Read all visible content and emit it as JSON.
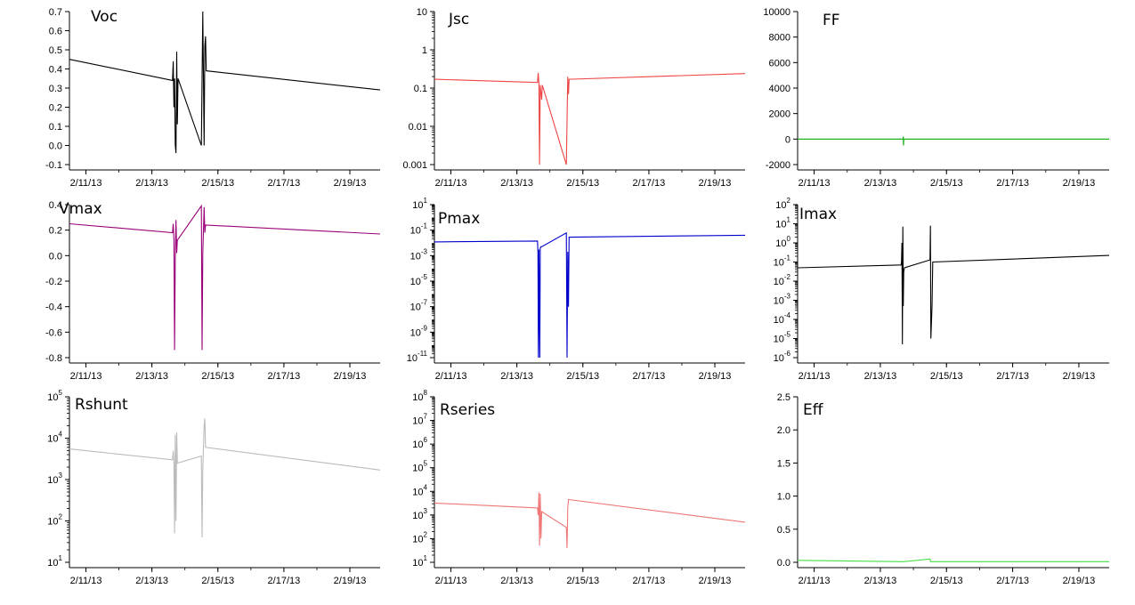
{
  "x_ticks": [
    "2/11/13",
    "2/13/13",
    "2/15/13",
    "2/17/13",
    "2/19/13"
  ],
  "chart_data": [
    {
      "type": "line",
      "title": "Voc",
      "color": "#000000",
      "scale": "linear",
      "ylim": [
        -0.1,
        0.7
      ],
      "y_ticks": [
        {
          "value": 0.7,
          "label": "0.7"
        },
        {
          "value": 0.6,
          "label": "0.6"
        },
        {
          "value": 0.5,
          "label": "0.5"
        },
        {
          "value": 0.4,
          "label": "0.4"
        },
        {
          "value": 0.3,
          "label": "0.3"
        },
        {
          "value": 0.2,
          "label": "0.2"
        },
        {
          "value": 0.1,
          "label": "0.1"
        },
        {
          "value": 0.0,
          "label": "0.0"
        },
        {
          "value": -0.1,
          "label": "-0.1"
        }
      ],
      "x": [
        "2013-02-10T12:00",
        "2013-02-13T15:00",
        "2013-02-13T15:30",
        "2013-02-13T16:00",
        "2013-02-13T16:30",
        "2013-02-13T17:00",
        "2013-02-13T17:30",
        "2013-02-13T18:00",
        "2013-02-13T18:30",
        "2013-02-13T19:00",
        "2013-02-14T12:00",
        "2013-02-14T13:00",
        "2013-02-14T14:00",
        "2013-02-14T14:30",
        "2013-02-14T15:00",
        "2013-02-14T15:30",
        "2013-02-19T22:00"
      ],
      "y": [
        0.45,
        0.34,
        0.44,
        0.2,
        0.35,
        0.0,
        -0.04,
        0.49,
        0.11,
        0.35,
        0.0,
        0.7,
        0.0,
        0.52,
        0.57,
        0.39,
        0.29
      ]
    },
    {
      "type": "line",
      "title": "Jsc",
      "color": "#ee4444",
      "scale": "log",
      "ylim": [
        0.001,
        10
      ],
      "y_ticks": [
        {
          "value": 10,
          "label": "10"
        },
        {
          "value": 1,
          "label": "1"
        },
        {
          "value": 0.1,
          "label": "0.1"
        },
        {
          "value": 0.01,
          "label": "0.01"
        },
        {
          "value": 0.001,
          "label": "0.001"
        }
      ],
      "x": [
        "2013-02-10T12:00",
        "2013-02-13T15:00",
        "2013-02-13T15:30",
        "2013-02-13T16:00",
        "2013-02-13T16:30",
        "2013-02-13T17:00",
        "2013-02-13T18:00",
        "2013-02-13T18:30",
        "2013-02-14T12:00",
        "2013-02-14T13:00",
        "2013-02-14T13:30",
        "2013-02-14T14:00",
        "2013-02-19T22:00"
      ],
      "y": [
        0.17,
        0.14,
        0.25,
        0.13,
        0.001,
        0.12,
        0.05,
        0.12,
        0.001,
        0.2,
        0.07,
        0.17,
        0.24
      ]
    },
    {
      "type": "line",
      "title": "FF",
      "color": "#00aa00",
      "scale": "linear",
      "ylim": [
        -2000,
        10000
      ],
      "y_ticks": [
        {
          "value": 10000,
          "label": "10000"
        },
        {
          "value": 8000,
          "label": "8000"
        },
        {
          "value": 6000,
          "label": "6000"
        },
        {
          "value": 4000,
          "label": "4000"
        },
        {
          "value": 2000,
          "label": "2000"
        },
        {
          "value": 0,
          "label": "0"
        },
        {
          "value": -2000,
          "label": "-2000"
        }
      ],
      "x": [
        "2013-02-10T12:00",
        "2013-02-13T16:30",
        "2013-02-13T16:40",
        "2013-02-13T16:50",
        "2013-02-13T17:00",
        "2013-02-19T22:00"
      ],
      "y": [
        0,
        0,
        200,
        -500,
        0,
        0
      ]
    },
    {
      "type": "line",
      "title": "Vmax",
      "color": "#990077",
      "scale": "linear",
      "ylim": [
        -0.8,
        0.4
      ],
      "y_ticks": [
        {
          "value": 0.4,
          "label": "0.4"
        },
        {
          "value": 0.2,
          "label": "0.2"
        },
        {
          "value": 0.0,
          "label": "0.0"
        },
        {
          "value": -0.2,
          "label": "-0.2"
        },
        {
          "value": -0.4,
          "label": "-0.4"
        },
        {
          "value": -0.6,
          "label": "-0.6"
        },
        {
          "value": -0.8,
          "label": "-0.8"
        }
      ],
      "x": [
        "2013-02-10T12:00",
        "2013-02-13T15:00",
        "2013-02-13T15:30",
        "2013-02-13T16:00",
        "2013-02-13T16:30",
        "2013-02-13T17:00",
        "2013-02-13T17:30",
        "2013-02-13T18:00",
        "2013-02-13T18:30",
        "2013-02-14T12:00",
        "2013-02-14T12:30",
        "2013-02-14T13:00",
        "2013-02-14T14:00",
        "2013-02-14T14:30",
        "2013-02-14T15:00",
        "2013-02-19T22:00"
      ],
      "y": [
        0.25,
        0.18,
        0.25,
        0.12,
        -0.74,
        0.0,
        0.28,
        0.02,
        0.12,
        0.39,
        -0.74,
        0.02,
        0.38,
        0.18,
        0.24,
        0.17
      ]
    },
    {
      "type": "line",
      "title": "Pmax",
      "color": "#0000cc",
      "scale": "log",
      "ylim": [
        1e-11,
        10
      ],
      "y_ticks": [
        {
          "value": 10,
          "label": "10",
          "exp": "1"
        },
        {
          "value": 0.1,
          "label": "10",
          "exp": "-1"
        },
        {
          "value": 0.001,
          "label": "10",
          "exp": "-3"
        },
        {
          "value": 1e-05,
          "label": "10",
          "exp": "-5"
        },
        {
          "value": 1e-07,
          "label": "10",
          "exp": "-7"
        },
        {
          "value": 1e-09,
          "label": "10",
          "exp": "-9"
        },
        {
          "value": 1e-11,
          "label": "10",
          "exp": "-11"
        }
      ],
      "x": [
        "2013-02-10T12:00",
        "2013-02-13T15:00",
        "2013-02-13T15:20",
        "2013-02-13T15:40",
        "2013-02-13T16:00",
        "2013-02-13T16:20",
        "2013-02-13T16:40",
        "2013-02-13T17:00",
        "2013-02-13T17:30",
        "2013-02-13T18:00",
        "2013-02-14T12:00",
        "2013-02-14T12:30",
        "2013-02-14T13:00",
        "2013-02-14T13:30",
        "2013-02-14T14:00",
        "2013-02-19T22:00"
      ],
      "y": [
        0.012,
        0.014,
        0.002,
        1e-11,
        0.003,
        1e-07,
        1e-11,
        0.004,
        0.005,
        0.005,
        0.06,
        1e-11,
        0.002,
        1e-07,
        0.028,
        0.04
      ]
    },
    {
      "type": "line",
      "title": "Imax",
      "color": "#000000",
      "scale": "log",
      "ylim": [
        1e-06,
        100
      ],
      "y_ticks": [
        {
          "value": 100,
          "label": "10",
          "exp": "2"
        },
        {
          "value": 10,
          "label": "10",
          "exp": "1"
        },
        {
          "value": 1,
          "label": "10",
          "exp": "0"
        },
        {
          "value": 0.1,
          "label": "10",
          "exp": "-1"
        },
        {
          "value": 0.01,
          "label": "10",
          "exp": "-2"
        },
        {
          "value": 0.001,
          "label": "10",
          "exp": "-3"
        },
        {
          "value": 0.0001,
          "label": "10",
          "exp": "-4"
        },
        {
          "value": 1e-05,
          "label": "10",
          "exp": "-5"
        },
        {
          "value": 1e-06,
          "label": "10",
          "exp": "-6"
        }
      ],
      "x": [
        "2013-02-10T12:00",
        "2013-02-13T15:00",
        "2013-02-13T15:20",
        "2013-02-13T15:40",
        "2013-02-13T16:00",
        "2013-02-13T16:20",
        "2013-02-13T16:40",
        "2013-02-13T17:00",
        "2013-02-13T17:30",
        "2013-02-14T12:00",
        "2013-02-14T12:20",
        "2013-02-14T12:40",
        "2013-02-14T13:30",
        "2013-02-14T14:00",
        "2013-02-19T22:00"
      ],
      "y": [
        0.05,
        0.07,
        0.1,
        1.0,
        5e-06,
        7.0,
        0.0005,
        0.03,
        0.05,
        0.13,
        8.0,
        1e-05,
        0.0005,
        0.1,
        0.22
      ]
    },
    {
      "type": "line",
      "title": "Rshunt",
      "color": "#bbbbbb",
      "scale": "log",
      "ylim": [
        10,
        100000
      ],
      "y_ticks": [
        {
          "value": 100000,
          "label": "10",
          "exp": "5"
        },
        {
          "value": 10000,
          "label": "10",
          "exp": "4"
        },
        {
          "value": 1000,
          "label": "10",
          "exp": "3"
        },
        {
          "value": 100,
          "label": "10",
          "exp": "2"
        },
        {
          "value": 10,
          "label": "10",
          "exp": "1"
        }
      ],
      "x": [
        "2013-02-10T12:00",
        "2013-02-13T15:00",
        "2013-02-13T15:30",
        "2013-02-13T16:00",
        "2013-02-13T16:30",
        "2013-02-13T17:00",
        "2013-02-13T17:30",
        "2013-02-13T18:00",
        "2013-02-13T18:30",
        "2013-02-14T12:00",
        "2013-02-14T12:30",
        "2013-02-14T13:00",
        "2013-02-14T14:00",
        "2013-02-14T14:30",
        "2013-02-14T15:00",
        "2013-02-19T22:00"
      ],
      "y": [
        5500,
        3000,
        5000,
        2500,
        50,
        12000,
        100,
        14000,
        2500,
        3700,
        40,
        1800,
        20000,
        30000,
        6000,
        1700
      ]
    },
    {
      "type": "line",
      "title": "Rseries",
      "color": "#ee7777",
      "scale": "log",
      "ylim": [
        10,
        100000000
      ],
      "y_ticks": [
        {
          "value": 100000000,
          "label": "10",
          "exp": "8"
        },
        {
          "value": 10000000,
          "label": "10",
          "exp": "7"
        },
        {
          "value": 1000000,
          "label": "10",
          "exp": "6"
        },
        {
          "value": 100000,
          "label": "10",
          "exp": "5"
        },
        {
          "value": 10000,
          "label": "10",
          "exp": "4"
        },
        {
          "value": 1000,
          "label": "10",
          "exp": "3"
        },
        {
          "value": 100,
          "label": "10",
          "exp": "2"
        },
        {
          "value": 10,
          "label": "10",
          "exp": "1"
        }
      ],
      "x": [
        "2013-02-10T12:00",
        "2013-02-13T15:00",
        "2013-02-13T15:30",
        "2013-02-13T16:00",
        "2013-02-13T16:30",
        "2013-02-13T17:00",
        "2013-02-13T17:30",
        "2013-02-13T18:00",
        "2013-02-14T12:00",
        "2013-02-14T12:30",
        "2013-02-14T13:00",
        "2013-02-14T13:30",
        "2013-02-19T22:00"
      ],
      "y": [
        3200,
        2000,
        1000,
        9000,
        50,
        8000,
        100,
        1400,
        300,
        40,
        2000,
        4500,
        500
      ]
    },
    {
      "type": "line",
      "title": "Eff",
      "color": "#44dd44",
      "scale": "linear",
      "ylim": [
        0.0,
        2.5
      ],
      "y_ticks": [
        {
          "value": 2.5,
          "label": "2.5"
        },
        {
          "value": 2.0,
          "label": "2.0"
        },
        {
          "value": 1.5,
          "label": "1.5"
        },
        {
          "value": 1.0,
          "label": "1.0"
        },
        {
          "value": 0.5,
          "label": "0.5"
        },
        {
          "value": 0.0,
          "label": "0.0"
        }
      ],
      "x": [
        "2013-02-10T12:00",
        "2013-02-13T16:30",
        "2013-02-13T17:00",
        "2013-02-14T12:00",
        "2013-02-14T12:30",
        "2013-02-19T22:00"
      ],
      "y": [
        0.03,
        0.01,
        0.01,
        0.05,
        0.01,
        0.01
      ]
    }
  ]
}
